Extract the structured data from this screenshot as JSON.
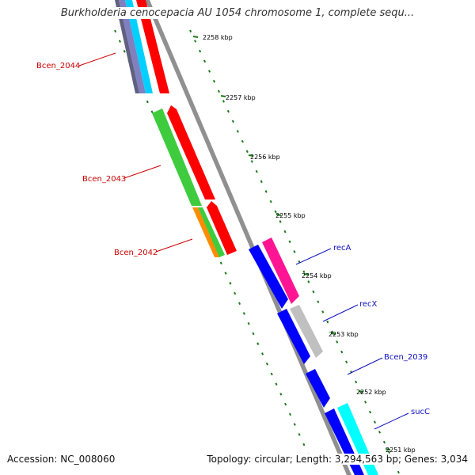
{
  "title": "Burkholderia cenocepacia AU 1054 chromosome 1, complete sequ...",
  "footer": {
    "accession": "Accession: NC_008060",
    "topology": "Topology: circular; Length: 3,294,563 bp; Genes: 3,034"
  },
  "colors": {
    "backbone": "#909090",
    "tick": "#1a7a1a",
    "left_label": "#cc0000",
    "right_label": "#1010c0"
  },
  "scale_labels": [
    {
      "text": "2258 kbp",
      "kbp": 2258
    },
    {
      "text": "2257 kbp",
      "kbp": 2257
    },
    {
      "text": "2256 kbp",
      "kbp": 2256
    },
    {
      "text": "2255 kbp",
      "kbp": 2255
    },
    {
      "text": "2254 kbp",
      "kbp": 2254
    },
    {
      "text": "2253 kbp",
      "kbp": 2253
    },
    {
      "text": "2252 kbp",
      "kbp": 2252
    },
    {
      "text": "2251 kbp",
      "kbp": 2251
    }
  ],
  "gene_labels": {
    "left": [
      "Bcen_2044",
      "Bcen_2043",
      "Bcen_2042"
    ],
    "right": [
      "recA",
      "recX",
      "Bcen_2039",
      "sucC"
    ]
  },
  "feature_colors": [
    "#ff0000",
    "#3ecc3e",
    "#ff8c00",
    "#0000ff",
    "#ff1493",
    "#c0c0c0",
    "#00ffff",
    "#8080c0"
  ]
}
